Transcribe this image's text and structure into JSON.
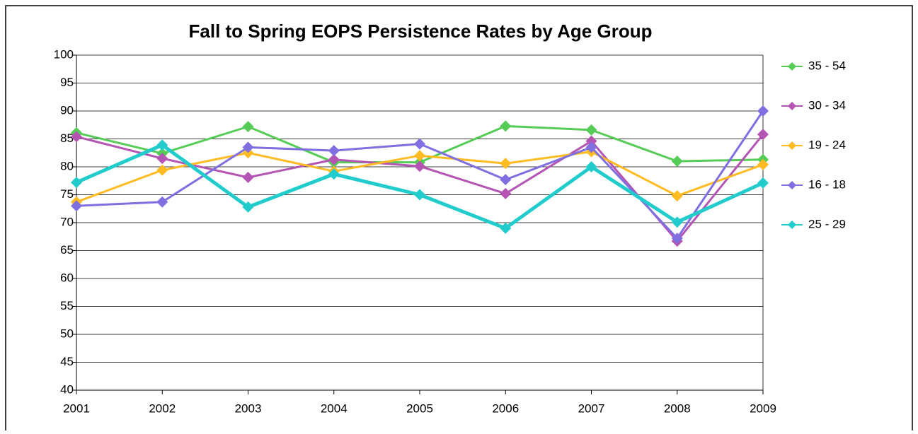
{
  "chart_data": {
    "type": "line",
    "title": "Fall to Spring EOPS Persistence Rates by Age Group",
    "categories": [
      "2001",
      "2002",
      "2003",
      "2004",
      "2005",
      "2006",
      "2007",
      "2008",
      "2009"
    ],
    "series": [
      {
        "name": "35 - 54",
        "color": "#55cc55",
        "values": [
          86.1,
          82.4,
          87.2,
          80.8,
          80.8,
          87.3,
          86.6,
          81.0,
          81.3
        ]
      },
      {
        "name": "30 - 34",
        "color": "#b455b4",
        "values": [
          85.4,
          81.5,
          78.1,
          81.3,
          80.1,
          75.2,
          84.6,
          66.7,
          85.8
        ]
      },
      {
        "name": "19 - 24",
        "color": "#ffbb22",
        "values": [
          73.7,
          79.4,
          82.5,
          79.2,
          82.0,
          80.6,
          82.7,
          74.8,
          80.4
        ]
      },
      {
        "name": "16 - 18",
        "color": "#7f6fe0",
        "values": [
          73.0,
          73.7,
          83.5,
          82.9,
          84.1,
          77.7,
          83.5,
          67.2,
          90.0
        ]
      },
      {
        "name": "25 - 29",
        "color": "#22cccc",
        "values": [
          77.2,
          83.9,
          72.8,
          78.7,
          75.0,
          69.0,
          80.0,
          70.1,
          77.1
        ]
      }
    ],
    "ylim": [
      40,
      100
    ],
    "yticks": [
      40,
      45,
      50,
      55,
      60,
      65,
      70,
      75,
      80,
      85,
      90,
      95,
      100
    ],
    "grid": true,
    "legend": "right"
  }
}
